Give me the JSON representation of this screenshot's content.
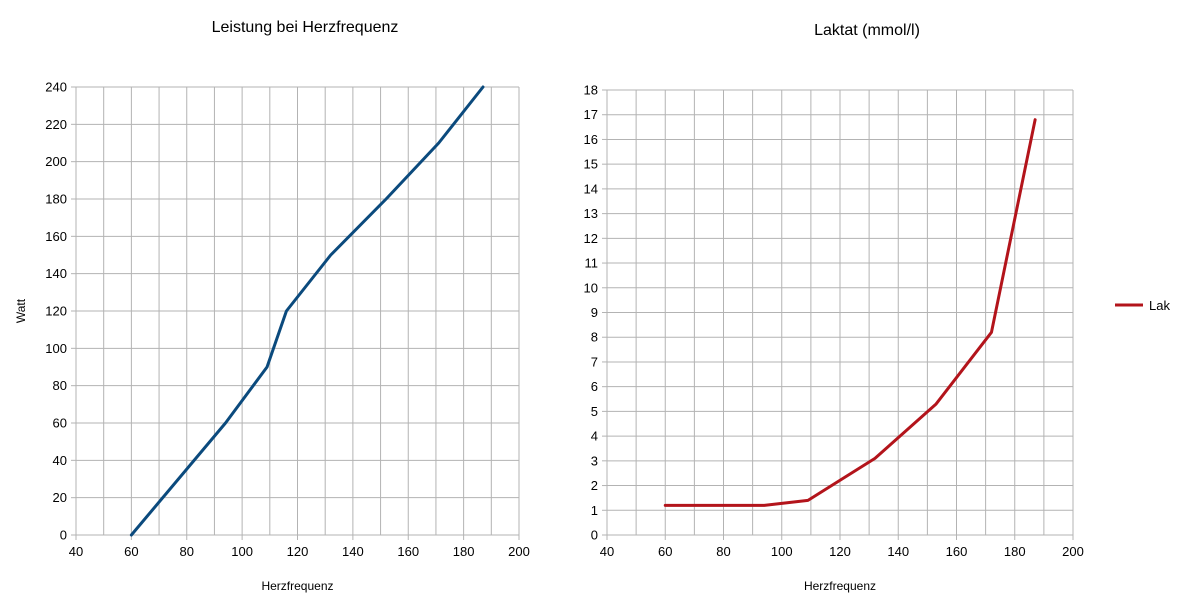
{
  "chart_data": [
    {
      "type": "line",
      "title": "Leistung bei Herzfrequenz",
      "xlabel": "Herzfrequenz",
      "ylabel": "Watt",
      "xlim": [
        40,
        200
      ],
      "ylim": [
        0,
        240
      ],
      "x_ticks": [
        40,
        60,
        80,
        100,
        120,
        140,
        160,
        180,
        200
      ],
      "y_ticks": [
        0,
        20,
        40,
        60,
        80,
        100,
        120,
        140,
        160,
        180,
        200,
        220,
        240
      ],
      "x_minor_step": 10,
      "y_minor_step": 20,
      "grid": true,
      "legend": null,
      "series": [
        {
          "color": "#0b4a7d",
          "x": [
            60,
            94,
            109,
            116,
            132,
            152,
            171,
            187
          ],
          "y": [
            0,
            60,
            90,
            120,
            150,
            180,
            210,
            240
          ]
        }
      ]
    },
    {
      "type": "line",
      "title": "Laktat (mmol/l)",
      "xlabel": "Herzfrequenz",
      "ylabel": "",
      "xlim": [
        40,
        200
      ],
      "ylim": [
        0,
        18
      ],
      "x_ticks": [
        40,
        60,
        80,
        100,
        120,
        140,
        160,
        180,
        200
      ],
      "y_ticks": [
        0,
        1,
        2,
        3,
        4,
        5,
        6,
        7,
        8,
        9,
        10,
        11,
        12,
        13,
        14,
        15,
        16,
        17,
        18
      ],
      "x_minor_step": 10,
      "y_minor_step": 1,
      "grid": true,
      "legend": "right",
      "series": [
        {
          "name": "Lak",
          "color": "#b3141b",
          "x": [
            60,
            94,
            109,
            132,
            153,
            172,
            187
          ],
          "y": [
            1.2,
            1.2,
            1.4,
            3.1,
            5.3,
            8.2,
            16.8
          ]
        }
      ]
    }
  ]
}
